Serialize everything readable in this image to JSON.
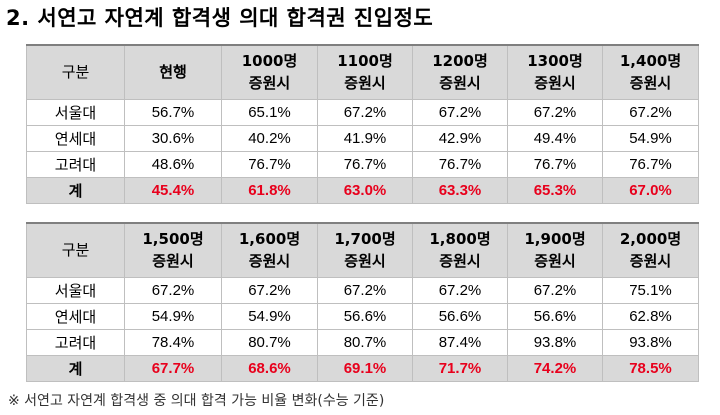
{
  "title": "2. 서연고 자연계 합격생 의대 합격권 진입정도",
  "table1": {
    "headers": [
      {
        "l1": "구분",
        "l2": ""
      },
      {
        "l1": "현행",
        "l2": ""
      },
      {
        "l1": "1000명",
        "l2": "증원시"
      },
      {
        "l1": "1100명",
        "l2": "증원시"
      },
      {
        "l1": "1200명",
        "l2": "증원시"
      },
      {
        "l1": "1300명",
        "l2": "증원시"
      },
      {
        "l1": "1,400명",
        "l2": "증원시"
      }
    ],
    "rows": [
      {
        "label": "서울대",
        "values": [
          "56.7%",
          "65.1%",
          "67.2%",
          "67.2%",
          "67.2%",
          "67.2%"
        ]
      },
      {
        "label": "연세대",
        "values": [
          "30.6%",
          "40.2%",
          "41.9%",
          "42.9%",
          "49.4%",
          "54.9%"
        ]
      },
      {
        "label": "고려대",
        "values": [
          "48.6%",
          "76.7%",
          "76.7%",
          "76.7%",
          "76.7%",
          "76.7%"
        ]
      }
    ],
    "total": {
      "label": "계",
      "values": [
        "45.4%",
        "61.8%",
        "63.0%",
        "63.3%",
        "65.3%",
        "67.0%"
      ]
    }
  },
  "table2": {
    "headers": [
      {
        "l1": "구분",
        "l2": ""
      },
      {
        "l1": "1,500명",
        "l2": "증원시"
      },
      {
        "l1": "1,600명",
        "l2": "증원시"
      },
      {
        "l1": "1,700명",
        "l2": "증원시"
      },
      {
        "l1": "1,800명",
        "l2": "증원시"
      },
      {
        "l1": "1,900명",
        "l2": "증원시"
      },
      {
        "l1": "2,000명",
        "l2": "증원시"
      }
    ],
    "rows": [
      {
        "label": "서울대",
        "values": [
          "67.2%",
          "67.2%",
          "67.2%",
          "67.2%",
          "67.2%",
          "75.1%"
        ]
      },
      {
        "label": "연세대",
        "values": [
          "54.9%",
          "54.9%",
          "56.6%",
          "56.6%",
          "56.6%",
          "62.8%"
        ]
      },
      {
        "label": "고려대",
        "values": [
          "78.4%",
          "80.7%",
          "80.7%",
          "87.4%",
          "93.8%",
          "93.8%"
        ]
      }
    ],
    "total": {
      "label": "계",
      "values": [
        "67.7%",
        "68.6%",
        "69.1%",
        "71.7%",
        "74.2%",
        "78.5%"
      ]
    }
  },
  "note": "※ 서연고 자연계 합격생 중 의대 합격 가능 비율 변화(수능 기준)",
  "colors": {
    "header_bg": "#d9d9d9",
    "total_text": "#e8001c",
    "border": "#bfbfbf"
  }
}
